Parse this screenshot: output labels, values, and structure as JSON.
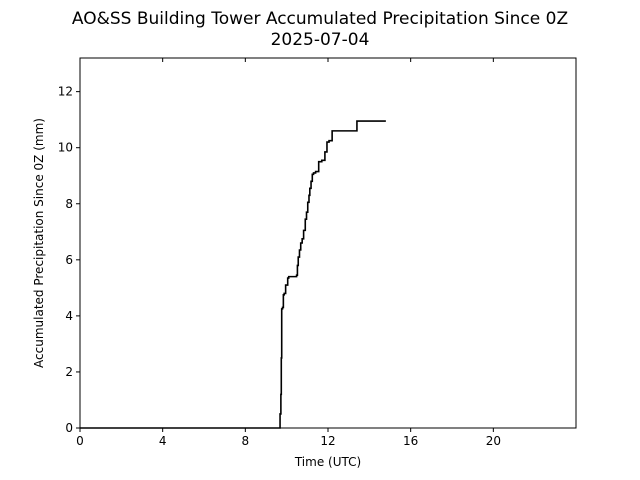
{
  "chart_data": {
    "type": "line",
    "title": "AO&SS Building Tower Accumulated Precipitation Since 0Z",
    "subtitle": "2025-07-04",
    "xlabel": "Time (UTC)",
    "ylabel": "Accumulated Precipitation Since 0Z (mm)",
    "xlim": [
      0,
      24
    ],
    "ylim": [
      0,
      13.2
    ],
    "xticks": [
      0,
      4,
      8,
      12,
      16,
      20
    ],
    "yticks": [
      0,
      2,
      4,
      6,
      8,
      10,
      12
    ],
    "grid": false,
    "legend": "none",
    "line_color": "#000000",
    "series": [
      {
        "x": [
          0,
          9.65,
          9.68,
          9.72,
          9.74,
          9.76,
          9.8,
          9.84,
          9.88,
          9.95,
          10.05,
          10.1,
          10.25,
          10.48,
          10.52,
          10.56,
          10.62,
          10.68,
          10.75,
          10.82,
          10.9,
          10.96,
          11.02,
          11.08,
          11.12,
          11.18,
          11.24,
          11.3,
          11.4,
          11.55,
          11.7,
          11.85,
          11.95,
          12.05,
          12.2,
          12.5,
          13.0,
          13.4,
          13.5,
          14.2,
          14.8
        ],
        "y": [
          0,
          0,
          0.5,
          1.2,
          2.5,
          4.25,
          4.3,
          4.75,
          4.8,
          5.1,
          5.35,
          5.4,
          5.4,
          5.45,
          5.8,
          6.1,
          6.35,
          6.6,
          6.75,
          7.05,
          7.45,
          7.7,
          8.05,
          8.3,
          8.55,
          8.8,
          9.05,
          9.1,
          9.15,
          9.5,
          9.55,
          9.85,
          10.2,
          10.25,
          10.6,
          10.6,
          10.6,
          10.95,
          10.95,
          10.95,
          10.95
        ]
      }
    ]
  }
}
